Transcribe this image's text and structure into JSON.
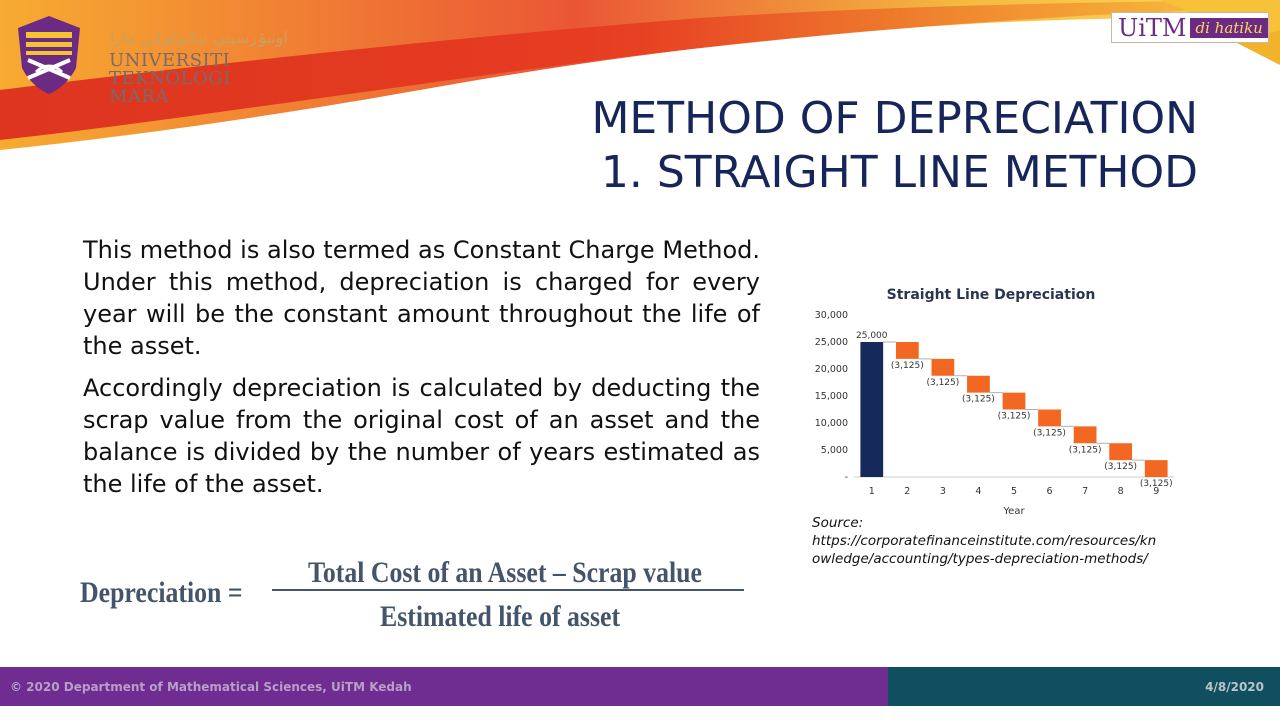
{
  "header": {
    "logo_jawi": "اونيۏرسيتي تيكنولوݢي مارا",
    "logo_lines": [
      "UNIVERSITI",
      "TEKNOLOGI",
      "MARA"
    ],
    "badge_brand": "UiTM",
    "badge_tagline": "di hatiku"
  },
  "title": {
    "line1": "METHOD OF DEPRECIATION",
    "line2": "1. STRAIGHT LINE METHOD"
  },
  "body": {
    "para1": "This method is also termed as Constant Charge Method. Under this method, depreciation is charged for every year will be the constant amount throughout the life of the asset.",
    "para2": "Accordingly depreciation is calculated by deducting the scrap value from the original cost of an asset and the balance is divided by the number of years estimated as the life of the asset."
  },
  "formula": {
    "lhs": "Depreciation =",
    "numerator": "Total Cost of an Asset – Scrap value",
    "denominator": "Estimated life of asset"
  },
  "chart_data": {
    "type": "bar",
    "title": "Straight Line Depreciation",
    "xlabel": "Year",
    "ylabel": "",
    "ylim": [
      0,
      30000
    ],
    "yticks": [
      {
        "v": 30000,
        "label": "30,000"
      },
      {
        "v": 25000,
        "label": "25,000"
      },
      {
        "v": 20000,
        "label": "20,000"
      },
      {
        "v": 15000,
        "label": "15,000"
      },
      {
        "v": 10000,
        "label": "10,000"
      },
      {
        "v": 5000,
        "label": "5,000"
      },
      {
        "v": 0,
        "label": "-"
      }
    ],
    "categories": [
      "1",
      "2",
      "3",
      "4",
      "5",
      "6",
      "7",
      "8",
      "9"
    ],
    "bars": [
      {
        "start": 0,
        "end": 25000,
        "label": "25,000",
        "kind": "total"
      },
      {
        "start": 25000,
        "end": 21875,
        "label": "(3,125)",
        "kind": "decrease"
      },
      {
        "start": 21875,
        "end": 18750,
        "label": "(3,125)",
        "kind": "decrease"
      },
      {
        "start": 18750,
        "end": 15625,
        "label": "(3,125)",
        "kind": "decrease"
      },
      {
        "start": 15625,
        "end": 12500,
        "label": "(3,125)",
        "kind": "decrease"
      },
      {
        "start": 12500,
        "end": 9375,
        "label": "(3,125)",
        "kind": "decrease"
      },
      {
        "start": 9375,
        "end": 6250,
        "label": "(3,125)",
        "kind": "decrease"
      },
      {
        "start": 6250,
        "end": 3125,
        "label": "(3,125)",
        "kind": "decrease"
      },
      {
        "start": 3125,
        "end": 0,
        "label": "(3,125)",
        "kind": "decrease"
      }
    ],
    "colors": {
      "total": "#15295a",
      "decrease": "#f26722",
      "connector": "#b0b0b0"
    }
  },
  "source": {
    "label": "Source:",
    "url": "https://corporatefinanceinstitute.com/resources/knowledge/accounting/types-depreciation-methods/"
  },
  "footer": {
    "copyright": "© 2020 Department of Mathematical Sciences, UiTM Kedah",
    "date": "4/8/2020"
  },
  "colors": {
    "title": "#16255a",
    "footer_left": "#6f2c91",
    "footer_right": "#0f4f5f"
  }
}
